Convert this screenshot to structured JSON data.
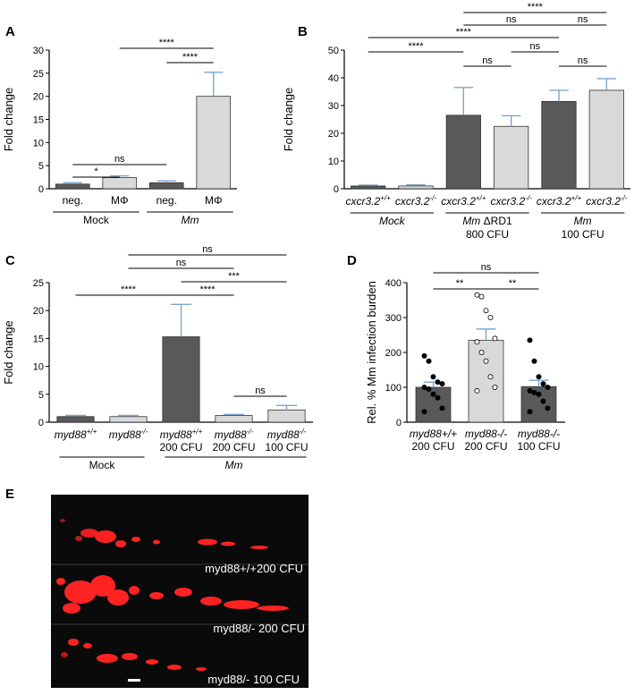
{
  "colors": {
    "dark_bar": "#595959",
    "light_bar": "#d9d9d9",
    "error": "#7aa6cc",
    "axis": "#000000",
    "fluor_bg": "#0a0a0a",
    "fluor_red": "#ff2020"
  },
  "chart_data": [
    {
      "panel": "A",
      "type": "bar",
      "ylabel": "Fold change",
      "ylim": [
        0,
        30
      ],
      "yticks": [
        "0",
        "5",
        "10",
        "15",
        "20",
        "25",
        "30"
      ],
      "categories": [
        "neg.",
        "MΦ",
        "neg.",
        "MΦ"
      ],
      "values": [
        1.0,
        2.4,
        1.3,
        20.0
      ],
      "errors": [
        0.3,
        0.4,
        0.4,
        5.2
      ],
      "fills": [
        "dark",
        "light",
        "dark",
        "light"
      ],
      "groups": [
        {
          "label": "Mock",
          "italic": false
        },
        {
          "label": "Mm",
          "italic": true
        }
      ],
      "significance": [
        {
          "label": "*",
          "from": 0,
          "to": 1
        },
        {
          "label": "ns",
          "from": 0,
          "to": 2
        },
        {
          "label": "****",
          "from": 2,
          "to": 3
        },
        {
          "label": "****",
          "from": 1,
          "to": 3
        }
      ]
    },
    {
      "panel": "B",
      "type": "bar",
      "ylabel": "Fold change",
      "ylim": [
        0,
        50
      ],
      "yticks": [
        "0",
        "10",
        "20",
        "30",
        "40",
        "50"
      ],
      "categories": [
        {
          "main": "cxcr3.2",
          "sup": "+/+"
        },
        {
          "main": "cxcr3.2",
          "sup": "-/-"
        },
        {
          "main": "cxcr3.2",
          "sup": "+/+"
        },
        {
          "main": "cxcr3.2",
          "sup": "-/-"
        },
        {
          "main": "cxcr3.2",
          "sup": "+/+"
        },
        {
          "main": "cxcr3.2",
          "sup": "-/-"
        }
      ],
      "values": [
        1.0,
        1.0,
        26.5,
        22.5,
        31.5,
        35.5
      ],
      "errors": [
        0.3,
        0.4,
        10.0,
        3.8,
        4.0,
        4.2
      ],
      "fills": [
        "dark",
        "light",
        "dark",
        "light",
        "dark",
        "light"
      ],
      "groups": [
        {
          "label": "Mock",
          "sub": ""
        },
        {
          "label": "Mm ΔRD1",
          "sub": "800 CFU"
        },
        {
          "label": "Mm",
          "sub": "100 CFU"
        }
      ],
      "significance": [
        {
          "label": "ns",
          "from": 2,
          "to": 3
        },
        {
          "label": "ns",
          "from": 4,
          "to": 5
        },
        {
          "label": "****",
          "from": 0,
          "to": 2
        },
        {
          "label": "ns",
          "from": 3,
          "to": 4
        },
        {
          "label": "****",
          "from": 0,
          "to": 4
        },
        {
          "label": "ns",
          "from": 2,
          "to": 4
        },
        {
          "label": "ns",
          "from": 4,
          "to": 5
        },
        {
          "label": "****",
          "from": 2,
          "to": 5
        }
      ]
    },
    {
      "panel": "C",
      "type": "bar",
      "ylabel": "Fold change",
      "ylim": [
        0,
        25
      ],
      "yticks": [
        "0",
        "5",
        "10",
        "15",
        "20",
        "25"
      ],
      "categories": [
        {
          "main": "myd88",
          "sup": "+/+",
          "sub": ""
        },
        {
          "main": "myd88",
          "sup": "-/-",
          "sub": ""
        },
        {
          "main": "myd88",
          "sup": "+/+",
          "sub": "200 CFU"
        },
        {
          "main": "myd88",
          "sup": "-/-",
          "sub": "200 CFU"
        },
        {
          "main": "myd88",
          "sup": "-/-",
          "sub": "100 CFU"
        }
      ],
      "values": [
        1.0,
        1.0,
        15.3,
        1.2,
        2.2
      ],
      "errors": [
        0.2,
        0.2,
        5.8,
        0.2,
        0.8
      ],
      "fills": [
        "dark",
        "light",
        "dark",
        "light",
        "light"
      ],
      "groups": [
        {
          "label": "Mock"
        },
        {
          "label": "Mm"
        }
      ],
      "significance": [
        {
          "label": "ns",
          "from": 3,
          "to": 4
        },
        {
          "label": "****",
          "from": 2,
          "to": 3
        },
        {
          "label": "****",
          "from": 0,
          "to": 2
        },
        {
          "label": "***",
          "from": 2,
          "to": 4
        },
        {
          "label": "ns",
          "from": 1,
          "to": 3
        },
        {
          "label": "ns",
          "from": 1,
          "to": 4
        }
      ]
    },
    {
      "panel": "D",
      "type": "bar",
      "ylabel": "Rel. % Mm  infection burden",
      "ylim": [
        0,
        400
      ],
      "yticks": [
        "0",
        "100",
        "200",
        "300",
        "400"
      ],
      "categories": [
        {
          "main": "myd88+/+",
          "sub": "200 CFU"
        },
        {
          "main": "myd88-/-",
          "sub": "200 CFU"
        },
        {
          "main": "myd88-/-",
          "sub": "100 CFU"
        }
      ],
      "values": [
        100,
        235,
        102
      ],
      "errors": [
        15,
        32,
        18
      ],
      "fills": [
        "dark",
        "light",
        "dark"
      ],
      "points": [
        [
          190,
          175,
          130,
          115,
          110,
          100,
          95,
          80,
          70,
          40,
          30
        ],
        [
          365,
          360,
          320,
          300,
          240,
          230,
          200,
          175,
          130,
          100,
          90
        ],
        [
          235,
          175,
          130,
          110,
          100,
          90,
          85,
          80,
          60,
          40,
          30
        ]
      ],
      "significance": [
        {
          "label": "**",
          "from": 0,
          "to": 1
        },
        {
          "label": "**",
          "from": 1,
          "to": 2
        },
        {
          "label": "ns",
          "from": 0,
          "to": 2
        }
      ]
    }
  ],
  "panels": {
    "A": "A",
    "B": "B",
    "C": "C",
    "D": "D",
    "E": "E"
  },
  "fluor_panel": {
    "labels": [
      "myd88+/+200 CFU",
      "myd88/- 200 CFU",
      "myd88/- 100 CFU"
    ]
  }
}
